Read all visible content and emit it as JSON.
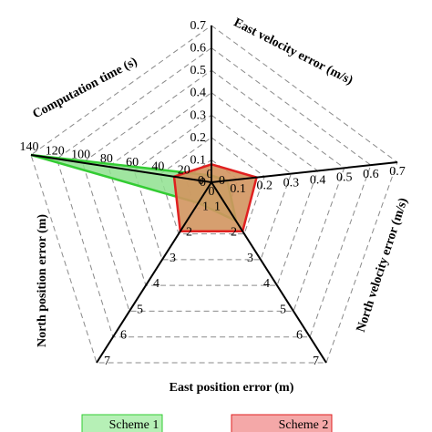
{
  "chart_data": {
    "type": "radar",
    "axes": [
      {
        "label": "East velocity error (m/s)",
        "ticks": [
          "0",
          "0.1",
          "0.2",
          "0.3",
          "0.4",
          "0.5",
          "0.6",
          "0.7"
        ],
        "range": [
          0,
          0.7
        ]
      },
      {
        "label": "North velocity error (m/s)",
        "ticks": [
          "0",
          "0.1",
          "0.2",
          "0.3",
          "0.4",
          "0.5",
          "0.6",
          "0.7"
        ],
        "range": [
          0,
          0.7
        ]
      },
      {
        "label": "East position error (m)",
        "ticks": [
          "0",
          "1",
          "2",
          "3",
          "4",
          "5",
          "6",
          "7"
        ],
        "range": [
          0,
          7
        ]
      },
      {
        "label": "North position error (m)",
        "ticks": [
          "0",
          "1",
          "2",
          "3",
          "4",
          "5",
          "6",
          "7"
        ],
        "range": [
          0,
          7
        ]
      },
      {
        "label": "Computation time (s)",
        "ticks": [
          "0",
          "20",
          "40",
          "60",
          "80",
          "100",
          "120",
          "140"
        ],
        "range": [
          0,
          140
        ]
      }
    ],
    "series": [
      {
        "name": "Scheme 1",
        "values": [
          0.03,
          0.06,
          1.5,
          0.8,
          140
        ],
        "fill": "#8fe08f",
        "stroke": "#33cc33"
      },
      {
        "name": "Scheme 2",
        "values": [
          0.08,
          0.17,
          1.9,
          1.9,
          29
        ],
        "fill": "#d2955f",
        "stroke": "#e02020"
      }
    ],
    "grid": true,
    "legend": "bottom"
  }
}
